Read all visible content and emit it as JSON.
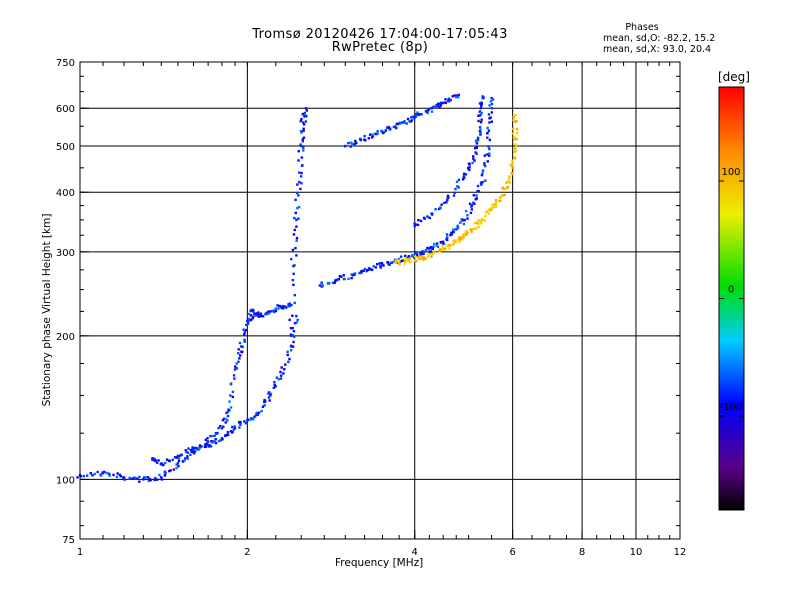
{
  "chart_data": {
    "type": "scatter",
    "title": "Tromsø 20120426 17:04:00-17:05:43",
    "subtitle": "RwPretec (8p)",
    "xlabel": "Frequency [MHz]",
    "ylabel": "Stationary phase Virtual Height [km]",
    "x_scale": "log",
    "y_scale": "log",
    "xlim": [
      1,
      12
    ],
    "ylim": [
      75,
      750
    ],
    "x_ticks": [
      1,
      2,
      4,
      6,
      8,
      10,
      12
    ],
    "x_tick_labels": [
      "1",
      "2",
      "4",
      "6",
      "8",
      "10",
      "12"
    ],
    "y_ticks": [
      75,
      100,
      200,
      300,
      400,
      500,
      600,
      750
    ],
    "y_tick_labels": [
      "75",
      "100",
      "200",
      "300",
      "400",
      "500",
      "600",
      "750"
    ],
    "grid": true,
    "legend": {
      "title": "Phases",
      "entries": [
        "mean, sd,O: -82.2, 15.2",
        "mean, sd,X: 93.0, 20.4"
      ],
      "placement": "top-right"
    },
    "colorbar": {
      "label": "[deg]",
      "range": [
        -180,
        180
      ],
      "ticks": [
        100,
        0,
        -100
      ],
      "tick_labels": [
        "100",
        "0",
        "-100"
      ],
      "colormap": "rainbow (black-purple-blue-cyan-green-yellow-red)"
    },
    "series": [
      {
        "name": "O",
        "color_phase": -82.2,
        "traces": [
          [
            [
              1.0,
              102
            ],
            [
              1.1,
              103
            ],
            [
              1.2,
              101
            ],
            [
              1.3,
              100
            ],
            [
              1.4,
              101
            ],
            [
              1.5,
              108
            ],
            [
              1.6,
              114
            ],
            [
              1.7,
              120
            ],
            [
              1.8,
              128
            ],
            [
              1.85,
              140
            ],
            [
              1.9,
              170
            ],
            [
              1.95,
              190
            ],
            [
              2.0,
              215
            ],
            [
              2.05,
              225
            ],
            [
              2.1,
              220
            ],
            [
              2.2,
              225
            ],
            [
              2.3,
              230
            ],
            [
              2.4,
              232
            ]
          ],
          [
            [
              1.35,
              110
            ],
            [
              1.4,
              108
            ],
            [
              1.5,
              112
            ],
            [
              1.6,
              116
            ],
            [
              1.7,
              118
            ],
            [
              1.8,
              122
            ],
            [
              1.9,
              128
            ],
            [
              2.0,
              133
            ],
            [
              2.1,
              138
            ],
            [
              2.2,
              150
            ],
            [
              2.3,
              165
            ],
            [
              2.4,
              190
            ],
            [
              2.45,
              220
            ]
          ],
          [
            [
              2.4,
              200
            ],
            [
              2.42,
              280
            ],
            [
              2.45,
              350
            ],
            [
              2.48,
              420
            ],
            [
              2.5,
              500
            ],
            [
              2.52,
              560
            ],
            [
              2.55,
              600
            ]
          ],
          [
            [
              2.7,
              255
            ],
            [
              2.9,
              262
            ],
            [
              3.1,
              268
            ],
            [
              3.3,
              275
            ],
            [
              3.5,
              282
            ],
            [
              3.7,
              288
            ],
            [
              3.9,
              292
            ],
            [
              4.1,
              298
            ],
            [
              4.3,
              305
            ],
            [
              4.5,
              315
            ],
            [
              4.7,
              330
            ],
            [
              4.9,
              350
            ],
            [
              5.1,
              380
            ],
            [
              5.3,
              420
            ],
            [
              5.4,
              480
            ],
            [
              5.45,
              560
            ],
            [
              5.5,
              630
            ]
          ],
          [
            [
              3.0,
              500
            ],
            [
              3.2,
              515
            ],
            [
              3.4,
              530
            ],
            [
              3.6,
              545
            ],
            [
              3.8,
              560
            ],
            [
              4.0,
              575
            ],
            [
              4.2,
              590
            ],
            [
              4.4,
              608
            ],
            [
              4.6,
              625
            ],
            [
              4.8,
              640
            ]
          ],
          [
            [
              4.0,
              340
            ],
            [
              4.3,
              360
            ],
            [
              4.6,
              390
            ],
            [
              4.9,
              430
            ],
            [
              5.1,
              470
            ],
            [
              5.2,
              520
            ],
            [
              5.25,
              580
            ],
            [
              5.3,
              635
            ]
          ]
        ]
      },
      {
        "name": "X",
        "color_phase": 93.0,
        "traces": [
          [
            [
              3.7,
              285
            ],
            [
              3.9,
              287
            ],
            [
              4.1,
              291
            ],
            [
              4.3,
              297
            ],
            [
              4.5,
              304
            ],
            [
              4.7,
              312
            ],
            [
              4.9,
              322
            ],
            [
              5.1,
              335
            ],
            [
              5.3,
              350
            ],
            [
              5.5,
              370
            ],
            [
              5.7,
              390
            ],
            [
              5.9,
              420
            ],
            [
              6.0,
              460
            ],
            [
              6.05,
              520
            ],
            [
              6.07,
              580
            ]
          ]
        ]
      }
    ]
  }
}
